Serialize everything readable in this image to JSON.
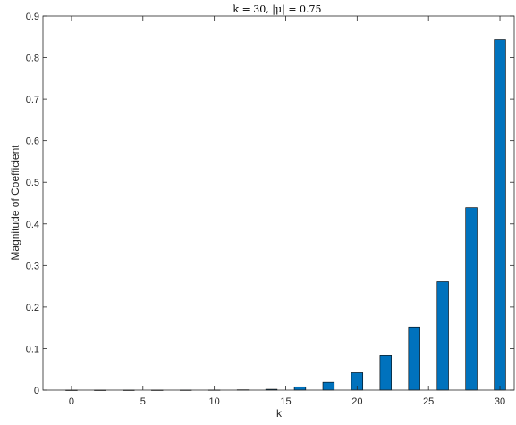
{
  "chart_data": {
    "type": "bar",
    "title": "k = 30, |μ| = 0.75",
    "xlabel": "k",
    "ylabel": "Magnitude of Coefficient",
    "xlim": [
      -2,
      31
    ],
    "ylim": [
      0,
      0.9
    ],
    "xticks": [
      "0",
      "5",
      "10",
      "15",
      "20",
      "25",
      "30"
    ],
    "yticks": [
      "0",
      "0.1",
      "0.2",
      "0.3",
      "0.4",
      "0.5",
      "0.6",
      "0.7",
      "0.8",
      "0.9"
    ],
    "grid": false,
    "bar_color": "#0072BD",
    "x": [
      0,
      2,
      4,
      6,
      8,
      10,
      12,
      14,
      16,
      18,
      20,
      22,
      24,
      26,
      28,
      30
    ],
    "values": [
      1e-05,
      2e-05,
      6e-05,
      0.0001,
      0.0002,
      0.0004,
      0.0008,
      0.002,
      0.008,
      0.019,
      0.042,
      0.083,
      0.152,
      0.261,
      0.439,
      0.843
    ]
  }
}
